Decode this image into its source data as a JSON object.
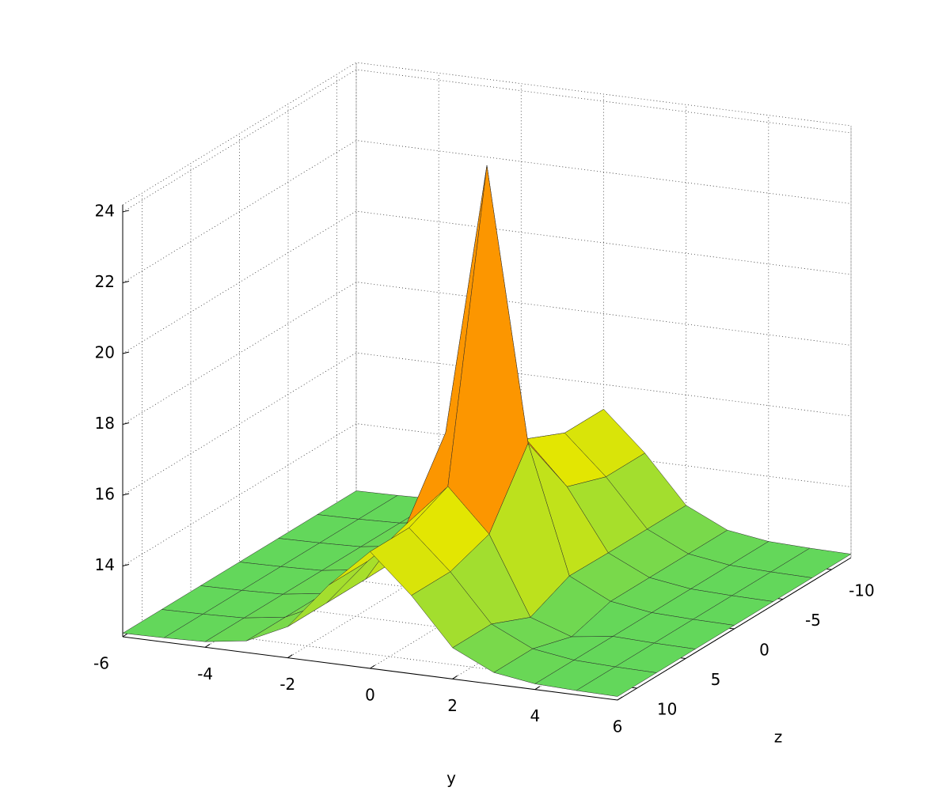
{
  "chart_data": {
    "type": "surface",
    "xlabel": "y",
    "ylabel": "z",
    "x": [
      -6,
      -5,
      -4,
      -3,
      -2,
      -1,
      0,
      1,
      2,
      3,
      4,
      5,
      6
    ],
    "y": [
      -12,
      -8,
      -4,
      0,
      4,
      8,
      12
    ],
    "values": [
      [
        12.1,
        12.12,
        12.16,
        12.33,
        12.88,
        14.21,
        15.3,
        14.21,
        12.88,
        12.33,
        12.16,
        12.12,
        12.1
      ],
      [
        12.1,
        12.12,
        12.16,
        12.33,
        12.88,
        14.21,
        15.3,
        14.21,
        12.88,
        12.33,
        12.16,
        12.12,
        12.1
      ],
      [
        12.1,
        12.12,
        12.16,
        12.33,
        12.88,
        14.6,
        15.8,
        14.6,
        12.88,
        12.33,
        12.16,
        12.12,
        12.1
      ],
      [
        12.1,
        12.12,
        12.16,
        12.33,
        12.9,
        16.5,
        24.2,
        16.5,
        12.9,
        12.33,
        12.16,
        12.12,
        12.1
      ],
      [
        12.1,
        12.12,
        12.16,
        12.33,
        12.88,
        14.6,
        15.8,
        14.6,
        12.4,
        12.0,
        12.16,
        12.12,
        12.1
      ],
      [
        12.1,
        12.12,
        12.16,
        12.33,
        12.88,
        14.21,
        15.3,
        14.21,
        12.88,
        12.33,
        12.16,
        12.12,
        12.1
      ],
      [
        12.1,
        12.12,
        12.16,
        12.33,
        12.88,
        14.21,
        15.3,
        14.21,
        12.88,
        12.33,
        12.16,
        12.12,
        12.1
      ]
    ],
    "colormap": [
      "#5ed65e",
      "#e6e600",
      "#ff8c00",
      "#e00000",
      "#7a0000"
    ],
    "xlim": [
      -6,
      6
    ],
    "xticks": [
      -6,
      -4,
      -2,
      0,
      2,
      4,
      6
    ],
    "ylim": [
      -12,
      12
    ],
    "yticks": [
      -10,
      -5,
      0,
      5,
      10
    ],
    "zlim": [
      12,
      24.2
    ],
    "zticks": [
      14,
      16,
      18,
      20,
      22,
      24
    ],
    "grid": true
  }
}
